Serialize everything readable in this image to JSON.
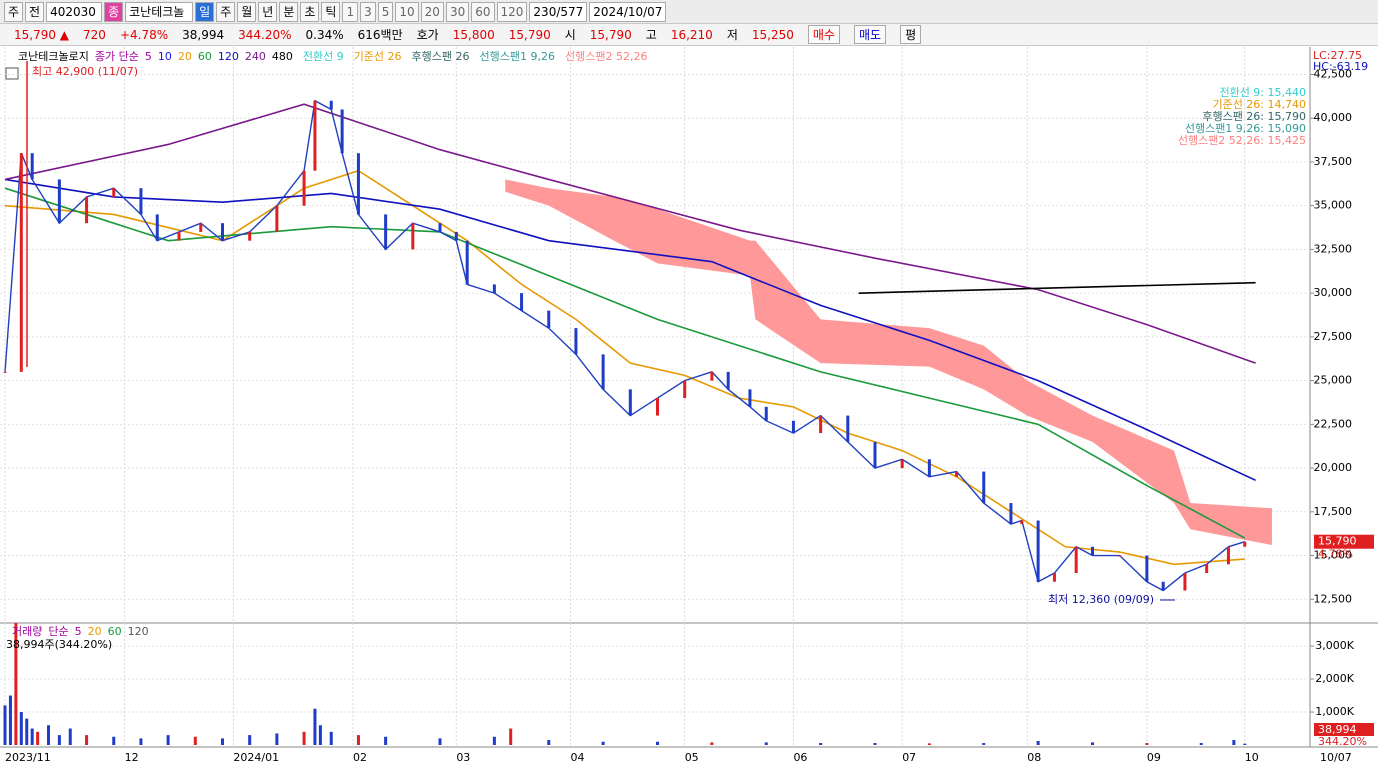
{
  "toolbar": [
    {
      "text": "주",
      "kind": "btn"
    },
    {
      "text": "전",
      "kind": "btn"
    },
    {
      "text": "402030",
      "kind": "input"
    },
    {
      "text": "종",
      "kind": "tag"
    },
    {
      "text": "코난테크놀",
      "kind": "name"
    },
    {
      "text": "일",
      "kind": "active"
    },
    {
      "text": "주",
      "kind": "btn"
    },
    {
      "text": "월",
      "kind": "btn"
    },
    {
      "text": "년",
      "kind": "btn"
    },
    {
      "text": "분",
      "kind": "btn"
    },
    {
      "text": "초",
      "kind": "btn"
    },
    {
      "text": "틱",
      "kind": "btn"
    },
    {
      "text": "1",
      "kind": "num"
    },
    {
      "text": "3",
      "kind": "num"
    },
    {
      "text": "5",
      "kind": "num"
    },
    {
      "text": "10",
      "kind": "num"
    },
    {
      "text": "20",
      "kind": "num"
    },
    {
      "text": "30",
      "kind": "num"
    },
    {
      "text": "60",
      "kind": "num"
    },
    {
      "text": "120",
      "kind": "num"
    },
    {
      "text": "230/577",
      "kind": "input"
    },
    {
      "text": "2024/10/07",
      "kind": "input"
    }
  ],
  "info": [
    {
      "text": "15,790 ▲",
      "color": "#e00000"
    },
    {
      "text": "720",
      "color": "#e00000"
    },
    {
      "text": "+4.78%",
      "color": "#e00000"
    },
    {
      "text": "38,994",
      "color": "#000000"
    },
    {
      "text": "344.20%",
      "color": "#e00000"
    },
    {
      "text": "0.34%",
      "color": "#000000"
    },
    {
      "text": "616백만",
      "color": "#000000"
    },
    {
      "text": "호가",
      "color": "#000000"
    },
    {
      "text": "15,800",
      "color": "#e00000"
    },
    {
      "text": "15,790",
      "color": "#e00000"
    },
    {
      "text": "시",
      "color": "#000000"
    },
    {
      "text": "15,790",
      "color": "#e00000"
    },
    {
      "text": "고",
      "color": "#000000"
    },
    {
      "text": "16,210",
      "color": "#e00000"
    },
    {
      "text": "저",
      "color": "#000000"
    },
    {
      "text": "15,250",
      "color": "#e00000"
    }
  ],
  "order_buttons": [
    {
      "text": "매수",
      "color": "#e00000"
    },
    {
      "text": "매도",
      "color": "#0000d0"
    },
    {
      "text": "평",
      "color": "#000000"
    }
  ],
  "chart_data": [
    {
      "type": "line",
      "title": "코난테크놀로지",
      "ma_label": "종가 단순",
      "legend_extra": [
        {
          "name": "5",
          "color": "#a000a0"
        },
        {
          "name": "10",
          "color": "#1a1aff"
        }
      ],
      "ichimoku_legend": [
        {
          "name": "전환선 9",
          "color": "#33cccc"
        },
        {
          "name": "기준선 26",
          "color": "#e69900"
        },
        {
          "name": "후행스팬 26",
          "color": "#336666"
        },
        {
          "name": "선행스팬1 9,26",
          "color": "#339999"
        },
        {
          "name": "선행스팬2 52,26",
          "color": "#ff8080"
        }
      ],
      "ichimoku_values": [
        {
          "text": "전환선 9: 15,440",
          "color": "#33cccc"
        },
        {
          "text": "기준선 26: 14,740",
          "color": "#e69900"
        },
        {
          "text": "후행스팬 26: 15,790",
          "color": "#336666"
        },
        {
          "text": "선행스팬1 9,26: 15,090",
          "color": "#339999"
        },
        {
          "text": "선행스팬2 52,26: 15,425",
          "color": "#ff8080"
        }
      ],
      "high_label": "최고 42,900 (11/07)",
      "low_label": "최저 12,360 (09/09)",
      "last_price": {
        "value": 15790,
        "label": "15,790"
      },
      "change_label": "4.78%",
      "lc_label": "LC:27.75",
      "hc_label": "HC:-63.19",
      "x_end_label": "10/07",
      "xlim": [
        0,
        240
      ],
      "xticks": [
        {
          "value": 0,
          "label": "2023/11"
        },
        {
          "value": 22,
          "label": "12"
        },
        {
          "value": 42,
          "label": "2024/01"
        },
        {
          "value": 64,
          "label": "02"
        },
        {
          "value": 83,
          "label": "03"
        },
        {
          "value": 104,
          "label": "04"
        },
        {
          "value": 125,
          "label": "05"
        },
        {
          "value": 145,
          "label": "06"
        },
        {
          "value": 165,
          "label": "07"
        },
        {
          "value": 188,
          "label": "08"
        },
        {
          "value": 210,
          "label": "09"
        },
        {
          "value": 228,
          "label": "10"
        }
      ],
      "ylim": [
        11200,
        43900
      ],
      "yticks": [
        {
          "value": 12500,
          "label": "12,500"
        },
        {
          "value": 15000,
          "label": "15,000"
        },
        {
          "value": 17500,
          "label": "17,500"
        },
        {
          "value": 20000,
          "label": "20,000"
        },
        {
          "value": 22500,
          "label": "22,500"
        },
        {
          "value": 25000,
          "label": "25,000"
        },
        {
          "value": 27500,
          "label": "27,500"
        },
        {
          "value": 30000,
          "label": "30,000"
        },
        {
          "value": 32500,
          "label": "32,500"
        },
        {
          "value": 35000,
          "label": "35,000"
        },
        {
          "value": 37500,
          "label": "37,500"
        },
        {
          "value": 40000,
          "label": "40,000"
        },
        {
          "value": 42500,
          "label": "42,500"
        }
      ],
      "cloud": {
        "color": "#ff9999",
        "x": [
          92,
          100,
          112,
          120,
          137,
          138,
          150,
          170,
          180,
          188,
          200,
          215,
          218,
          233
        ],
        "upper": [
          36500,
          36000,
          35500,
          34800,
          33000,
          33000,
          28500,
          28000,
          27000,
          25000,
          23000,
          21000,
          18000,
          17700
        ],
        "lower": [
          35800,
          35000,
          33000,
          31700,
          31000,
          28500,
          26000,
          25800,
          24500,
          23000,
          21500,
          18000,
          16500,
          15600
        ]
      },
      "close": {
        "color": "#2040c0",
        "x": [
          0,
          3,
          5,
          10,
          15,
          20,
          25,
          28,
          32,
          36,
          40,
          45,
          50,
          55,
          57,
          60,
          62,
          65,
          70,
          75,
          80,
          83,
          85,
          90,
          95,
          100,
          105,
          110,
          115,
          120,
          125,
          130,
          133,
          137,
          140,
          145,
          150,
          155,
          160,
          165,
          170,
          175,
          180,
          185,
          187,
          190,
          193,
          197,
          200,
          205,
          210,
          213,
          217,
          221,
          225,
          228
        ],
        "values": [
          25500,
          38000,
          36500,
          34000,
          35500,
          36000,
          34500,
          33000,
          33500,
          34000,
          33000,
          33500,
          35000,
          37000,
          41000,
          40500,
          38000,
          34500,
          32500,
          34000,
          33500,
          33000,
          30500,
          30000,
          29000,
          28000,
          26500,
          24500,
          23000,
          24000,
          25000,
          25500,
          24500,
          23500,
          22700,
          22000,
          23000,
          21500,
          20000,
          20500,
          19500,
          19800,
          18000,
          16800,
          17000,
          13500,
          14000,
          15500,
          15000,
          15000,
          13500,
          13000,
          14000,
          14500,
          15500,
          15790
        ]
      },
      "series": [
        {
          "name": "20",
          "color": "#e69900",
          "x": [
            0,
            20,
            40,
            55,
            65,
            75,
            85,
            95,
            105,
            115,
            125,
            135,
            145,
            155,
            165,
            175,
            185,
            195,
            205,
            215,
            228
          ],
          "values": [
            35000,
            34500,
            33000,
            36000,
            37000,
            35000,
            33000,
            30500,
            28500,
            26000,
            25300,
            24000,
            23500,
            22000,
            21000,
            19500,
            17500,
            15500,
            15200,
            14500,
            14800
          ]
        },
        {
          "name": "60",
          "color": "#1a9a3a",
          "x": [
            0,
            30,
            60,
            80,
            100,
            120,
            150,
            170,
            190,
            210,
            228
          ],
          "values": [
            36000,
            33000,
            33800,
            33500,
            31000,
            28500,
            25500,
            24000,
            22500,
            19000,
            16000
          ]
        },
        {
          "name": "120",
          "color": "#1010c0",
          "x": [
            0,
            20,
            40,
            60,
            80,
            100,
            130,
            150,
            170,
            190,
            210,
            230
          ],
          "values": [
            36500,
            35500,
            35200,
            35700,
            34800,
            33000,
            31800,
            29300,
            27300,
            25000,
            22200,
            19300
          ]
        },
        {
          "name": "240",
          "color": "#7a1a8a",
          "x": [
            0,
            30,
            55,
            80,
            100,
            135,
            160,
            190,
            210,
            230
          ],
          "values": [
            36500,
            38500,
            40800,
            38200,
            36500,
            33600,
            32000,
            30200,
            28200,
            26000
          ]
        },
        {
          "name": "480",
          "color": "#000000",
          "x": [
            157,
            230
          ],
          "values": [
            30000,
            30600
          ]
        }
      ]
    },
    {
      "type": "bar",
      "title": "거래량",
      "ma_label": "단순",
      "periods": [
        {
          "name": "5",
          "color": "#a000a0"
        },
        {
          "name": "20",
          "color": "#e69900"
        },
        {
          "name": "60",
          "color": "#1a9a3a"
        },
        {
          "name": "120",
          "color": "#555555"
        }
      ],
      "last_label": "38,994주(344.20%)",
      "last_box": "38,994",
      "last_pct": "344.20%",
      "color": "#1e3cc8",
      "up_color": "#e02020",
      "xlim": [
        0,
        240
      ],
      "x": [
        0,
        1,
        2,
        3,
        4,
        5,
        6,
        8,
        10,
        12,
        15,
        20,
        25,
        30,
        35,
        40,
        45,
        50,
        55,
        57,
        58,
        60,
        65,
        70,
        80,
        90,
        93,
        100,
        110,
        120,
        130,
        140,
        150,
        160,
        170,
        180,
        190,
        200,
        210,
        220,
        226,
        228
      ],
      "values": [
        1200,
        1500,
        3700,
        1000,
        800,
        500,
        400,
        600,
        300,
        500,
        300,
        250,
        200,
        300,
        250,
        200,
        300,
        350,
        400,
        1100,
        600,
        400,
        300,
        250,
        200,
        250,
        500,
        150,
        100,
        100,
        80,
        80,
        60,
        60,
        50,
        60,
        120,
        80,
        60,
        60,
        150,
        38.994
      ],
      "ylim": [
        0,
        3700
      ],
      "yticks": [
        {
          "value": 1000,
          "label": "1,000K"
        },
        {
          "value": 2000,
          "label": "2,000K"
        },
        {
          "value": 3000,
          "label": "3,000K"
        }
      ]
    }
  ]
}
